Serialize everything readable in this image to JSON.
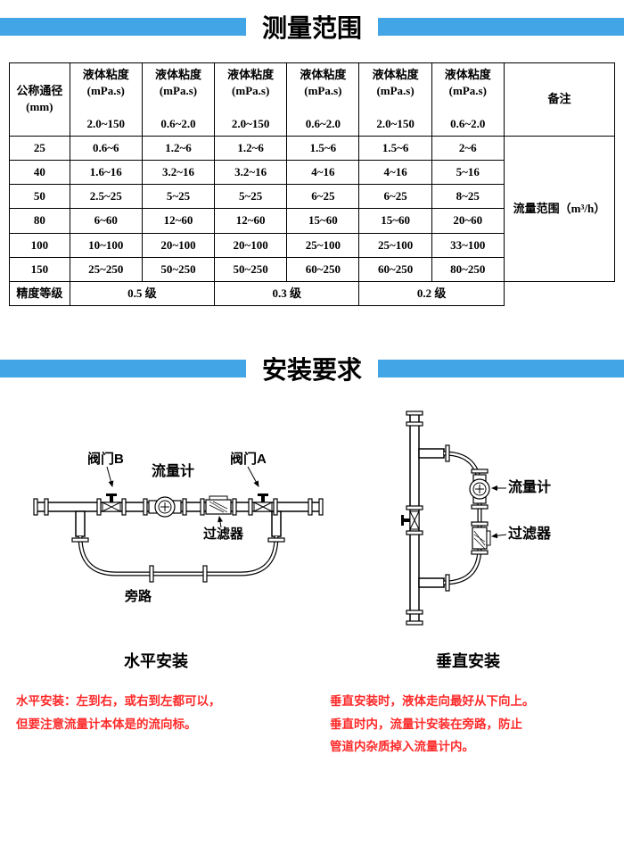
{
  "section1_title": "测量范围",
  "section2_title": "安装要求",
  "table": {
    "col_dn": "公称通径\n(mm)",
    "col_visc_label": "液体粘度",
    "col_visc_unit": "(mPa.s)",
    "visc_ranges": [
      "2.0~150",
      "0.6~2.0",
      "2.0~150",
      "0.6~2.0",
      "2.0~150",
      "0.6~2.0"
    ],
    "remarks_header": "备注",
    "rows": [
      {
        "dn": "25",
        "v": [
          "0.6~6",
          "1.2~6",
          "1.2~6",
          "1.5~6",
          "1.5~6",
          "2~6"
        ]
      },
      {
        "dn": "40",
        "v": [
          "1.6~16",
          "3.2~16",
          "3.2~16",
          "4~16",
          "4~16",
          "5~16"
        ]
      },
      {
        "dn": "50",
        "v": [
          "2.5~25",
          "5~25",
          "5~25",
          "6~25",
          "6~25",
          "8~25"
        ]
      },
      {
        "dn": "80",
        "v": [
          "6~60",
          "12~60",
          "12~60",
          "15~60",
          "15~60",
          "20~60"
        ]
      },
      {
        "dn": "100",
        "v": [
          "10~100",
          "20~100",
          "20~100",
          "25~100",
          "25~100",
          "33~100"
        ]
      },
      {
        "dn": "150",
        "v": [
          "25~250",
          "50~250",
          "50~250",
          "60~250",
          "60~250",
          "80~250"
        ]
      }
    ],
    "flow_range_label": "流量范围（m³/h）",
    "accuracy_row_label": "精度等级",
    "accuracy_values": [
      "0.5 级",
      "0.3 级",
      "0.2 级"
    ]
  },
  "diagram": {
    "valveB": "阀门B",
    "valveA": "阀门A",
    "flowmeter": "流量计",
    "filter": "过滤器",
    "bypass": "旁路",
    "caption_h": "水平安装",
    "caption_v": "垂直安装"
  },
  "notes": {
    "left_l1": "水平安装：左到右，或右到左都可以，",
    "left_l2": "但要注意流量计本体是的流向标。",
    "right_l1": "垂直安装时，液体走向最好从下向上。",
    "right_l2": "垂直时内，流量计安装在旁路，防止",
    "right_l3": "管道内杂质掉入流量计内。"
  },
  "colors": {
    "bar": "#42a5e6",
    "note": "#ff2a2a",
    "line": "#000000"
  }
}
